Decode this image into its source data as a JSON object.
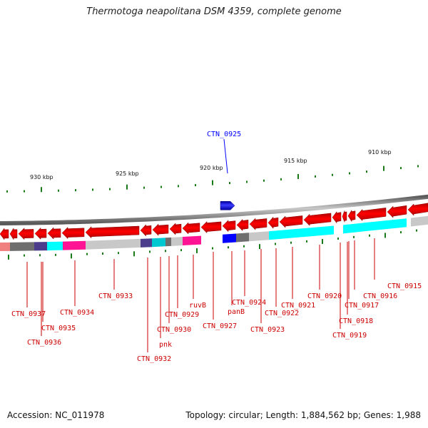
{
  "title": "Thermotoga neapolitana DSM 4359, complete genome",
  "footer": {
    "accession": "Accession: NC_011978",
    "topology": "Topology: circular; Length: 1,884,562 bp; Genes: 1,988"
  },
  "scale_labels": [
    "930 kbp",
    "925 kbp",
    "920 kbp",
    "915 kbp",
    "910 kbp"
  ],
  "blue_gene": {
    "label": "CTN_0925",
    "color": "#0000ff"
  },
  "red_genes": [
    "CTN_0937",
    "CTN_0936",
    "CTN_0935",
    "CTN_0934",
    "CTN_0933",
    "CTN_0932",
    "pnk",
    "CTN_0930",
    "CTN_0929",
    "ruvB",
    "CTN_0927",
    "panB",
    "CTN_0924",
    "CTN_0923",
    "CTN_0922",
    "CTN_0921",
    "CTN_0920",
    "CTN_0919",
    "CTN_0918",
    "CTN_0917",
    "CTN_0916",
    "CTN_0915"
  ],
  "colors": {
    "gene_red": "#ff0000",
    "label_red": "#cc0000",
    "backbone": "#888888",
    "tick_green": "#1a7a1a",
    "cyan": "#00ffff",
    "magenta": "#ff1493",
    "purple": "#4b3c8c",
    "light_grey": "#c8c8c8",
    "dark_grey": "#6e6e6e",
    "salmon": "#f08080"
  }
}
